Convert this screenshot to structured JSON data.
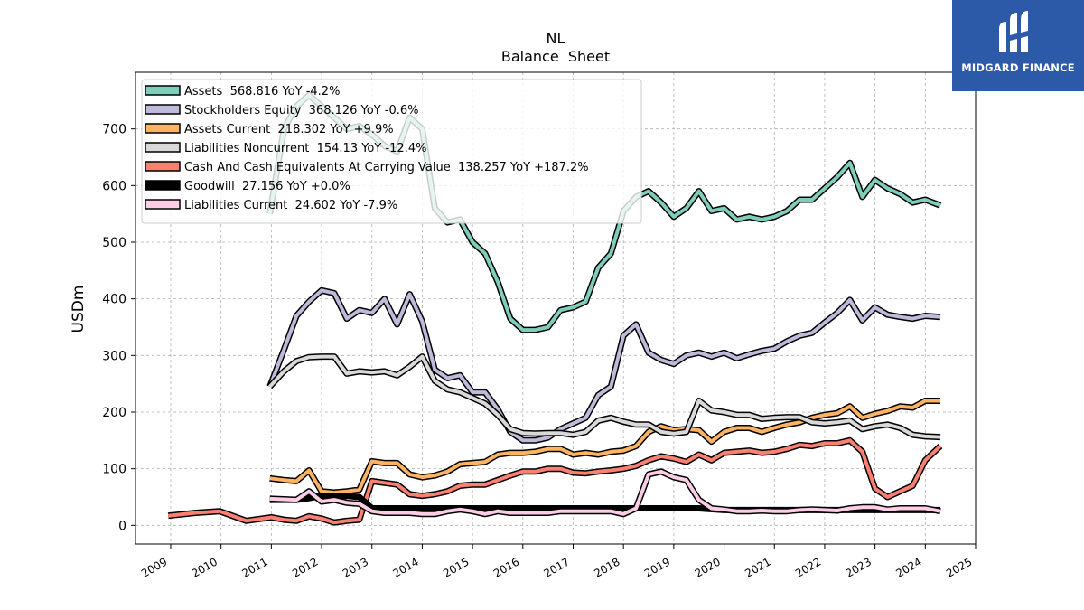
{
  "chart_data": {
    "type": "line",
    "title": "NL",
    "subtitle": "Balance  Sheet",
    "ylabel": "USDm",
    "xlabel": "",
    "xlim": [
      2008.3,
      2025.0
    ],
    "ylim": [
      -33,
      800
    ],
    "yticks": [
      0,
      100,
      200,
      300,
      400,
      500,
      600,
      700
    ],
    "xticks": [
      "2009",
      "2010",
      "2011",
      "2012",
      "2013",
      "2014",
      "2015",
      "2016",
      "2017",
      "2018",
      "2019",
      "2020",
      "2021",
      "2022",
      "2023",
      "2024",
      "2025"
    ],
    "grid": true,
    "legend_position": "top-left",
    "series": [
      {
        "name": "Assets",
        "legend": "Assets  568.816 YoY -4.2%",
        "color": "#7fcdbb",
        "x": [
          2010.97,
          2011.25,
          2011.5,
          2011.75,
          2012.0,
          2012.25,
          2012.5,
          2012.75,
          2013.0,
          2013.25,
          2013.5,
          2013.75,
          2014.0,
          2014.25,
          2014.5,
          2014.75,
          2015.0,
          2015.25,
          2015.5,
          2015.75,
          2016.0,
          2016.25,
          2016.5,
          2016.75,
          2017.0,
          2017.25,
          2017.5,
          2017.75,
          2018.0,
          2018.25,
          2018.5,
          2018.75,
          2019.0,
          2019.25,
          2019.5,
          2019.75,
          2020.0,
          2020.25,
          2020.5,
          2020.75,
          2021.0,
          2021.25,
          2021.5,
          2021.75,
          2022.0,
          2022.25,
          2022.5,
          2022.75,
          2023.0,
          2023.25,
          2023.5,
          2023.75,
          2024.0,
          2024.3
        ],
        "values": [
          550,
          700,
          740,
          760,
          740,
          720,
          700,
          705,
          690,
          670,
          660,
          720,
          700,
          560,
          535,
          540,
          500,
          480,
          430,
          365,
          345,
          345,
          350,
          380,
          385,
          395,
          455,
          480,
          555,
          580,
          590,
          570,
          545,
          560,
          590,
          555,
          560,
          540,
          545,
          540,
          545,
          555,
          575,
          575,
          595,
          615,
          640,
          580,
          610,
          595,
          585,
          570,
          575,
          565
        ]
      },
      {
        "name": "Stockholders Equity",
        "legend": "Stockholders Equity  368.126 YoY -0.6%",
        "color": "#bebada",
        "x": [
          2010.97,
          2011.25,
          2011.5,
          2011.75,
          2012.0,
          2012.25,
          2012.5,
          2012.75,
          2013.0,
          2013.25,
          2013.5,
          2013.75,
          2014.0,
          2014.25,
          2014.5,
          2014.75,
          2015.0,
          2015.25,
          2015.5,
          2015.75,
          2016.0,
          2016.25,
          2016.5,
          2016.75,
          2017.0,
          2017.25,
          2017.5,
          2017.75,
          2018.0,
          2018.25,
          2018.5,
          2018.75,
          2019.0,
          2019.25,
          2019.5,
          2019.75,
          2020.0,
          2020.25,
          2020.5,
          2020.75,
          2021.0,
          2021.25,
          2021.5,
          2021.75,
          2022.0,
          2022.25,
          2022.5,
          2022.75,
          2023.0,
          2023.25,
          2023.5,
          2023.75,
          2024.0,
          2024.3
        ],
        "values": [
          245,
          310,
          370,
          395,
          415,
          410,
          365,
          380,
          375,
          400,
          355,
          408,
          360,
          275,
          260,
          265,
          235,
          235,
          205,
          165,
          150,
          150,
          155,
          170,
          180,
          190,
          230,
          245,
          335,
          355,
          305,
          292,
          285,
          300,
          305,
          298,
          305,
          295,
          302,
          308,
          312,
          325,
          335,
          340,
          358,
          375,
          398,
          362,
          385,
          372,
          368,
          365,
          370,
          368
        ]
      },
      {
        "name": "Assets Current",
        "legend": "Assets Current  218.302 YoY +9.9%",
        "color": "#fdb462",
        "x": [
          2010.97,
          2011.25,
          2011.5,
          2011.75,
          2012.0,
          2012.25,
          2012.5,
          2012.75,
          2013.0,
          2013.25,
          2013.5,
          2013.75,
          2014.0,
          2014.25,
          2014.5,
          2014.75,
          2015.0,
          2015.25,
          2015.5,
          2015.75,
          2016.0,
          2016.25,
          2016.5,
          2016.75,
          2017.0,
          2017.25,
          2017.5,
          2017.75,
          2018.0,
          2018.25,
          2018.5,
          2018.75,
          2019.0,
          2019.25,
          2019.5,
          2019.75,
          2020.0,
          2020.25,
          2020.5,
          2020.75,
          2021.0,
          2021.25,
          2021.5,
          2021.75,
          2022.0,
          2022.25,
          2022.5,
          2022.75,
          2023.0,
          2023.25,
          2023.5,
          2023.75,
          2024.0,
          2024.3
        ],
        "values": [
          83,
          80,
          78,
          97,
          60,
          58,
          60,
          63,
          113,
          110,
          110,
          90,
          85,
          88,
          95,
          108,
          110,
          112,
          125,
          128,
          128,
          130,
          135,
          135,
          125,
          128,
          125,
          130,
          132,
          140,
          165,
          175,
          168,
          170,
          168,
          148,
          165,
          172,
          172,
          165,
          172,
          178,
          182,
          190,
          195,
          198,
          210,
          190,
          197,
          202,
          210,
          208,
          220,
          220
        ]
      },
      {
        "name": "Liabilities Noncurrent",
        "legend": "Liabilities Noncurrent  154.13 YoY -12.4%",
        "color": "#d9d9d9",
        "x": [
          2010.97,
          2011.25,
          2011.5,
          2011.75,
          2012.0,
          2012.25,
          2012.5,
          2012.75,
          2013.0,
          2013.25,
          2013.5,
          2013.75,
          2014.0,
          2014.25,
          2014.5,
          2014.75,
          2015.0,
          2015.25,
          2015.5,
          2015.75,
          2016.0,
          2016.25,
          2016.5,
          2016.75,
          2017.0,
          2017.25,
          2017.5,
          2017.75,
          2018.0,
          2018.25,
          2018.5,
          2018.75,
          2019.0,
          2019.25,
          2019.5,
          2019.75,
          2020.0,
          2020.25,
          2020.5,
          2020.75,
          2021.0,
          2021.25,
          2021.5,
          2021.75,
          2022.0,
          2022.25,
          2022.5,
          2022.75,
          2023.0,
          2023.25,
          2023.5,
          2023.75,
          2024.0,
          2024.3
        ],
        "values": [
          245,
          272,
          290,
          297,
          298,
          298,
          268,
          272,
          270,
          272,
          265,
          280,
          298,
          255,
          240,
          235,
          225,
          215,
          195,
          170,
          163,
          162,
          163,
          163,
          160,
          165,
          185,
          190,
          183,
          178,
          178,
          165,
          162,
          165,
          220,
          203,
          200,
          195,
          195,
          188,
          190,
          191,
          191,
          182,
          180,
          182,
          185,
          170,
          175,
          178,
          172,
          160,
          157,
          156
        ]
      },
      {
        "name": "Cash And Cash Equivalents At Carrying Value",
        "legend": "Cash And Cash Equivalents At Carrying Value  138.257 YoY +187.2%",
        "color": "#fb8072",
        "x": [
          2008.95,
          2009.5,
          2009.97,
          2010.5,
          2011.0,
          2011.25,
          2011.5,
          2011.75,
          2012.0,
          2012.25,
          2012.5,
          2012.75,
          2013.0,
          2013.25,
          2013.5,
          2013.75,
          2014.0,
          2014.25,
          2014.5,
          2014.75,
          2015.0,
          2015.25,
          2015.5,
          2015.75,
          2016.0,
          2016.25,
          2016.5,
          2016.75,
          2017.0,
          2017.25,
          2017.5,
          2017.75,
          2018.0,
          2018.25,
          2018.5,
          2018.75,
          2019.0,
          2019.25,
          2019.5,
          2019.75,
          2020.0,
          2020.25,
          2020.5,
          2020.75,
          2021.0,
          2021.25,
          2021.5,
          2021.75,
          2022.0,
          2022.25,
          2022.5,
          2022.75,
          2023.0,
          2023.25,
          2023.5,
          2023.75,
          2024.0,
          2024.3
        ],
        "values": [
          17,
          22,
          25,
          8,
          14,
          10,
          8,
          16,
          12,
          5,
          8,
          10,
          78,
          75,
          72,
          55,
          52,
          55,
          60,
          70,
          72,
          72,
          80,
          88,
          95,
          95,
          100,
          100,
          93,
          92,
          95,
          97,
          100,
          105,
          115,
          122,
          118,
          112,
          125,
          115,
          128,
          130,
          132,
          128,
          130,
          135,
          142,
          140,
          145,
          145,
          150,
          130,
          65,
          50,
          60,
          70,
          115,
          140
        ]
      },
      {
        "name": "Goodwill",
        "legend": "Goodwill  27.156 YoY +0.0%",
        "color": "#000000",
        "x": [
          2010.97,
          2011.5,
          2011.75,
          2012.0,
          2012.5,
          2012.75,
          2013.0,
          2014.0,
          2015.0,
          2016.0,
          2017.0,
          2018.0,
          2019.0,
          2019.5,
          2020.0,
          2021.0,
          2022.0,
          2023.0,
          2024.0,
          2024.3
        ],
        "values": [
          45,
          45,
          48,
          52,
          52,
          50,
          30,
          30,
          30,
          30,
          30,
          30,
          30,
          30,
          27,
          27,
          27,
          27,
          27,
          27
        ]
      },
      {
        "name": "Liabilities Current",
        "legend": "Liabilities Current  24.602 YoY -7.9%",
        "color": "#fccde5",
        "x": [
          2010.97,
          2011.25,
          2011.5,
          2011.75,
          2012.0,
          2012.25,
          2012.5,
          2012.75,
          2013.0,
          2013.25,
          2013.5,
          2013.75,
          2014.0,
          2014.25,
          2014.5,
          2014.75,
          2015.0,
          2015.25,
          2015.5,
          2015.75,
          2016.0,
          2016.25,
          2016.5,
          2016.75,
          2017.0,
          2017.25,
          2017.5,
          2017.75,
          2018.0,
          2018.25,
          2018.5,
          2018.75,
          2019.0,
          2019.25,
          2019.5,
          2019.75,
          2020.0,
          2020.25,
          2020.5,
          2020.75,
          2021.0,
          2021.25,
          2021.5,
          2021.75,
          2022.0,
          2022.25,
          2022.5,
          2022.75,
          2023.0,
          2023.25,
          2023.5,
          2023.75,
          2024.0,
          2024.3
        ],
        "values": [
          47,
          46,
          45,
          60,
          42,
          45,
          40,
          38,
          25,
          22,
          22,
          22,
          20,
          20,
          25,
          28,
          25,
          20,
          25,
          22,
          22,
          22,
          22,
          25,
          25,
          25,
          25,
          25,
          20,
          30,
          90,
          95,
          85,
          80,
          45,
          30,
          28,
          25,
          25,
          26,
          25,
          25,
          27,
          28,
          27,
          26,
          30,
          32,
          32,
          28,
          30,
          30,
          30,
          25
        ]
      }
    ]
  },
  "watermark": {
    "text": "MIDGARD FINANCE",
    "background": "#2c5aa8"
  }
}
